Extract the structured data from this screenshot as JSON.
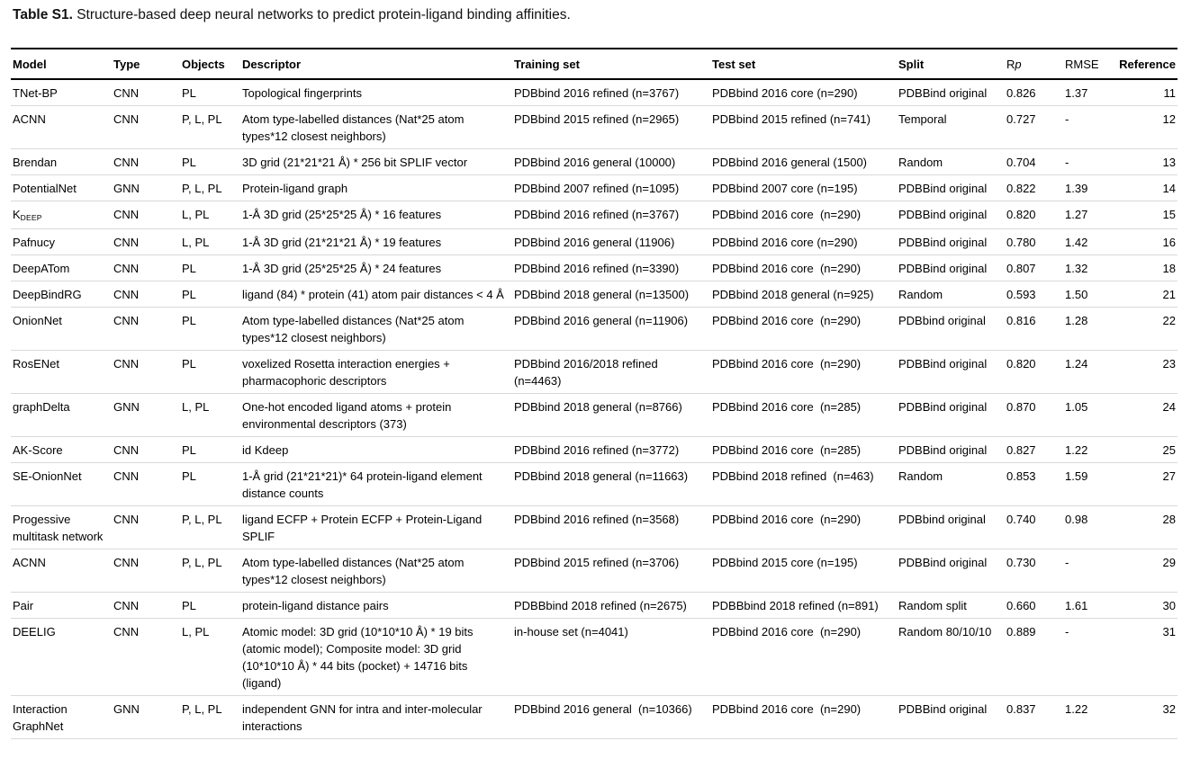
{
  "title": {
    "prefix": "Table S1.",
    "text": " Structure-based deep neural networks to predict protein-ligand binding affinities."
  },
  "table": {
    "headers": {
      "model": "Model",
      "type": "Type",
      "objects": "Objects",
      "descriptor": "Descriptor",
      "training": "Training set",
      "test": "Test set",
      "split": "Split",
      "rp_r": "R",
      "rp_p": "p",
      "rmse": "RMSE",
      "reference": "Reference"
    },
    "rows": [
      {
        "model": "TNet-BP",
        "type": "CNN",
        "objects": "PL",
        "descriptor": "Topological fingerprints",
        "training": "PDBbind 2016 refined (n=3767)",
        "test": "PDBbind 2016 core (n=290)",
        "split": "PDBBind original",
        "rp": "0.826",
        "rmse": "1.37",
        "ref": "11"
      },
      {
        "model": "ACNN",
        "type": "CNN",
        "objects": "P, L, PL",
        "descriptor": "Atom type-labelled distances (Nat*25 atom types*12 closest neighbors)",
        "training": "PDBbind 2015 refined (n=2965)",
        "test": "PDBbind 2015 refined (n=741)",
        "split": "Temporal",
        "rp": "0.727",
        "rmse": "-",
        "ref": "12"
      },
      {
        "model": "Brendan",
        "type": "CNN",
        "objects": "PL",
        "descriptor": "3D grid (21*21*21 Å) * 256 bit SPLIF vector",
        "training": "PDBbind 2016 general (10000)",
        "test": "PDBbind 2016 general (1500)",
        "split": "Random",
        "rp": "0.704",
        "rmse": "-",
        "ref": "13"
      },
      {
        "model": "PotentialNet",
        "type": "GNN",
        "objects": "P, L, PL",
        "descriptor": "Protein-ligand graph",
        "training": "PDBbind 2007 refined (n=1095)",
        "test": "PDBbind 2007 core (n=195)",
        "split": "PDBBind original",
        "rp": "0.822",
        "rmse": "1.39",
        "ref": "14"
      },
      {
        "model": "K",
        "model_sub": "DEEP",
        "type": "CNN",
        "objects": "L, PL",
        "descriptor": "1-Å 3D grid (25*25*25 Å) * 16 features",
        "training": "PDBbind 2016 refined (n=3767)",
        "test": "PDBbind 2016 core  (n=290)",
        "split": "PDBBind original",
        "rp": "0.820",
        "rmse": "1.27",
        "ref": "15"
      },
      {
        "model": "Pafnucy",
        "type": "CNN",
        "objects": "L, PL",
        "descriptor": "1-Å 3D grid (21*21*21 Å) * 19 features",
        "training": "PDBbind 2016 general (11906)",
        "test": "PDBbind 2016 core (n=290)",
        "split": "PDBBind original",
        "rp": "0.780",
        "rmse": "1.42",
        "ref": "16"
      },
      {
        "model": "DeepATom",
        "type": "CNN",
        "objects": "PL",
        "descriptor": "1-Å 3D grid (25*25*25 Å) * 24 features",
        "training": "PDBbind 2016 refined (n=3390)",
        "test": "PDBbind 2016 core  (n=290)",
        "split": "PDBBind original",
        "rp": "0.807",
        "rmse": "1.32",
        "ref": "18"
      },
      {
        "model": "DeepBindRG",
        "type": "CNN",
        "objects": "PL",
        "descriptor": "ligand (84) * protein (41) atom pair distances < 4 Å",
        "training": "PDBbind 2018 general (n=13500)",
        "test": "PDBbind 2018 general (n=925)",
        "split": "Random",
        "rp": "0.593",
        "rmse": "1.50",
        "ref": "21"
      },
      {
        "model": "OnionNet",
        "type": "CNN",
        "objects": "PL",
        "descriptor": "Atom type-labelled distances (Nat*25 atom types*12 closest neighbors)",
        "training": "PDBbind 2016 general (n=11906)",
        "test": "PDBbind 2016 core  (n=290)",
        "split": "PDBbind original",
        "rp": "0.816",
        "rmse": "1.28",
        "ref": "22"
      },
      {
        "model": "RosENet",
        "type": "CNN",
        "objects": "PL",
        "descriptor": "voxelized Rosetta interaction energies + pharmacophoric descriptors",
        "training": "PDBbind 2016/2018 refined (n=4463)",
        "test": "PDBbind 2016 core  (n=290)",
        "split": "PDBBind original",
        "rp": "0.820",
        "rmse": "1.24",
        "ref": "23"
      },
      {
        "model": "graphDelta",
        "type": "GNN",
        "objects": "L, PL",
        "descriptor": "One-hot encoded ligand atoms + protein environmental descriptors (373)",
        "training": "PDBbind 2018 general (n=8766)",
        "test": "PDBbind 2016 core  (n=285)",
        "split": "PDBBind original",
        "rp": "0.870",
        "rmse": "1.05",
        "ref": "24"
      },
      {
        "model": "AK-Score",
        "type": "CNN",
        "objects": "PL",
        "descriptor": "id Kdeep",
        "training": "PDBbind 2016 refined (n=3772)",
        "test": "PDBbind 2016 core  (n=285)",
        "split": "PDBBind original",
        "rp": "0.827",
        "rmse": "1.22",
        "ref": "25"
      },
      {
        "model": "SE-OnionNet",
        "type": "CNN",
        "objects": "PL",
        "descriptor": "1-Å grid (21*21*21)* 64 protein-ligand element distance counts",
        "training": "PDBbind 2018 general (n=11663)",
        "test": "PDBbind 2018 refined  (n=463)",
        "split": "Random",
        "rp": "0.853",
        "rmse": "1.59",
        "ref": "27"
      },
      {
        "model": "Progessive multitask network",
        "type": "CNN",
        "objects": "P, L, PL",
        "descriptor": "ligand ECFP + Protein ECFP + Protein-Ligand SPLIF",
        "training": "PDBbind 2016 refined (n=3568)",
        "test": "PDBbind 2016 core  (n=290)",
        "split": "PDBbind original",
        "rp": "0.740",
        "rmse": "0.98",
        "ref": "28"
      },
      {
        "model": "ACNN",
        "type": "CNN",
        "objects": "P, L, PL",
        "descriptor": "Atom type-labelled distances (Nat*25 atom types*12 closest neighbors)",
        "training": "PDBbind 2015 refined (n=3706)",
        "test": "PDBbind 2015 core (n=195)",
        "split": "PDBBind original",
        "rp": "0.730",
        "rmse": "-",
        "ref": "29"
      },
      {
        "model": "Pair",
        "type": "CNN",
        "objects": "PL",
        "descriptor": "protein-ligand distance pairs",
        "training": "PDBBbind 2018 refined (n=2675)",
        "test": "PDBBbind 2018 refined (n=891)",
        "split": "Random split",
        "rp": "0.660",
        "rmse": "1.61",
        "ref": "30"
      },
      {
        "model": "DEELIG",
        "type": "CNN",
        "objects": "L, PL",
        "descriptor": "Atomic model: 3D grid (10*10*10 Å) * 19 bits (atomic model); Composite model: 3D grid (10*10*10 Å) * 44 bits (pocket) + 14716 bits (ligand)",
        "training": "in-house set (n=4041)",
        "test": "PDBbind 2016 core  (n=290)",
        "split": "Random 80/10/10",
        "rp": "0.889",
        "rmse": "-",
        "ref": "31"
      },
      {
        "model": "Interaction GraphNet",
        "type": "GNN",
        "objects": "P, L, PL",
        "descriptor": "independent GNN for intra and inter-molecular interactions",
        "training": "PDBbind 2016 general  (n=10366)",
        "test": "PDBbind 2016 core  (n=290)",
        "split": "PDBBind original",
        "rp": "0.837",
        "rmse": "1.22",
        "ref": "32"
      }
    ]
  }
}
